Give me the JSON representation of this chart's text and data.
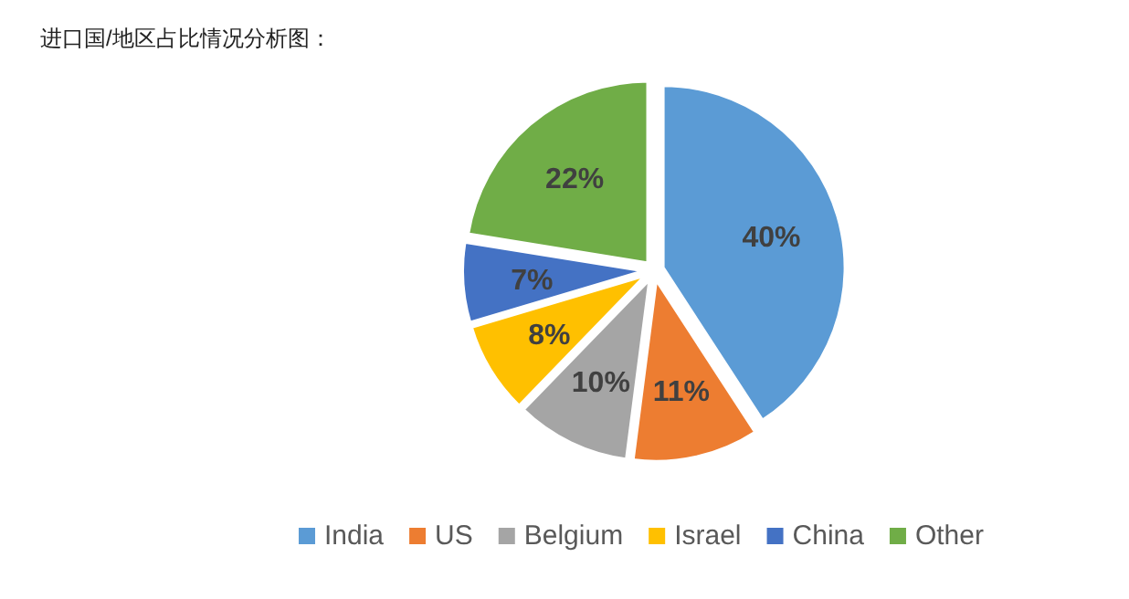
{
  "chart_data": {
    "type": "pie",
    "title": "进口国/地区占比情况分析图：",
    "categories": [
      "India",
      "US",
      "Belgium",
      "Israel",
      "China",
      "Other"
    ],
    "values": [
      40,
      11,
      10,
      8,
      7,
      22
    ],
    "colors": [
      "#5b9bd5",
      "#ed7d31",
      "#a5a5a5",
      "#ffc000",
      "#4472c4",
      "#70ad47"
    ],
    "value_labels": [
      "40%",
      "11%",
      "10%",
      "8%",
      "7%",
      "22%"
    ],
    "legend": "bottom"
  }
}
